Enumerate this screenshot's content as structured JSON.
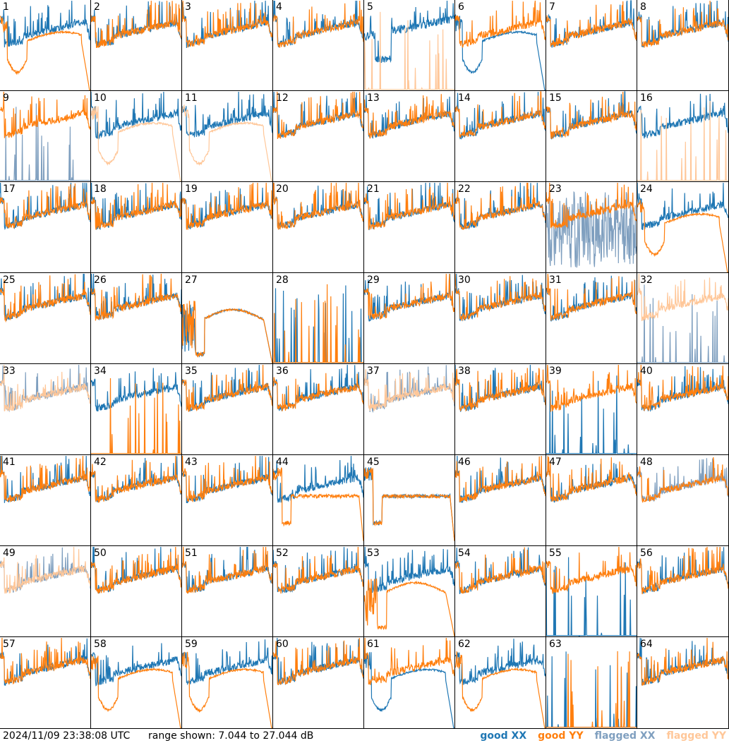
{
  "footer": {
    "timestamp": "2024/11/09 23:38:08 UTC",
    "range_label": "range shown: 7.044 to 27.044 dB"
  },
  "legend": [
    {
      "label": "good XX",
      "color": "#1f77b4"
    },
    {
      "label": "good YY",
      "color": "#ff7f0e"
    },
    {
      "label": "flagged XX",
      "color": "#7f9fbf"
    },
    {
      "label": "flagged YY",
      "color": "#ffc799"
    }
  ],
  "chart_data": {
    "type": "line",
    "grid": "8x8 small multiples",
    "ylim_db": [
      7.044,
      27.044
    ],
    "panels": [
      {
        "id": "1",
        "xx": "good",
        "yy": "good",
        "xx_shape": "noisy",
        "yy_shape": "dip_dropoff"
      },
      {
        "id": "2",
        "xx": "good",
        "yy": "good",
        "xx_shape": "noisy",
        "yy_shape": "noisy"
      },
      {
        "id": "3",
        "xx": "good",
        "yy": "good",
        "xx_shape": "noisy",
        "yy_shape": "noisy"
      },
      {
        "id": "4",
        "xx": "good",
        "yy": "good",
        "xx_shape": "noisy",
        "yy_shape": "noisy"
      },
      {
        "id": "5",
        "xx": "good",
        "yy": "flagged",
        "xx_shape": "noisy_dip",
        "yy_shape": "spikes_low"
      },
      {
        "id": "6",
        "xx": "good",
        "yy": "good",
        "xx_shape": "dip_dropoff",
        "yy_shape": "noisy"
      },
      {
        "id": "7",
        "xx": "good",
        "yy": "good",
        "xx_shape": "noisy",
        "yy_shape": "noisy"
      },
      {
        "id": "8",
        "xx": "good",
        "yy": "good",
        "xx_shape": "noisy",
        "yy_shape": "noisy"
      },
      {
        "id": "9",
        "xx": "flagged",
        "yy": "good",
        "xx_shape": "spikes_low",
        "yy_shape": "noisy"
      },
      {
        "id": "10",
        "xx": "good",
        "yy": "flagged",
        "xx_shape": "noisy",
        "yy_shape": "dip_dropoff"
      },
      {
        "id": "11",
        "xx": "good",
        "yy": "flagged",
        "xx_shape": "noisy",
        "yy_shape": "dip_dropoff"
      },
      {
        "id": "12",
        "xx": "good",
        "yy": "good",
        "xx_shape": "noisy",
        "yy_shape": "noisy"
      },
      {
        "id": "13",
        "xx": "good",
        "yy": "good",
        "xx_shape": "noisy",
        "yy_shape": "noisy"
      },
      {
        "id": "14",
        "xx": "good",
        "yy": "good",
        "xx_shape": "noisy",
        "yy_shape": "noisy"
      },
      {
        "id": "15",
        "xx": "good",
        "yy": "good",
        "xx_shape": "noisy",
        "yy_shape": "noisy"
      },
      {
        "id": "16",
        "xx": "good",
        "yy": "flagged",
        "xx_shape": "noisy",
        "yy_shape": "spikes_low"
      },
      {
        "id": "17",
        "xx": "good",
        "yy": "good",
        "xx_shape": "noisy",
        "yy_shape": "noisy"
      },
      {
        "id": "18",
        "xx": "good",
        "yy": "good",
        "xx_shape": "noisy",
        "yy_shape": "noisy"
      },
      {
        "id": "19",
        "xx": "good",
        "yy": "good",
        "xx_shape": "noisy",
        "yy_shape": "noisy"
      },
      {
        "id": "20",
        "xx": "good",
        "yy": "good",
        "xx_shape": "noisy",
        "yy_shape": "noisy"
      },
      {
        "id": "21",
        "xx": "good",
        "yy": "good",
        "xx_shape": "noisy",
        "yy_shape": "noisy"
      },
      {
        "id": "22",
        "xx": "good",
        "yy": "good",
        "xx_shape": "noisy",
        "yy_shape": "noisy"
      },
      {
        "id": "23",
        "xx": "flagged",
        "yy": "good",
        "xx_shape": "wild",
        "yy_shape": "noisy"
      },
      {
        "id": "24",
        "xx": "good",
        "yy": "good",
        "xx_shape": "noisy",
        "yy_shape": "dip_dropoff"
      },
      {
        "id": "25",
        "xx": "good",
        "yy": "good",
        "xx_shape": "noisy",
        "yy_shape": "noisy"
      },
      {
        "id": "26",
        "xx": "good",
        "yy": "good",
        "xx_shape": "noisy",
        "yy_shape": "noisy"
      },
      {
        "id": "27",
        "xx": "good",
        "yy": "good",
        "xx_shape": "hump",
        "yy_shape": "hump"
      },
      {
        "id": "28",
        "xx": "good",
        "yy": "good",
        "xx_shape": "spikes_low",
        "yy_shape": "spikes_low"
      },
      {
        "id": "29",
        "xx": "good",
        "yy": "good",
        "xx_shape": "noisy",
        "yy_shape": "noisy"
      },
      {
        "id": "30",
        "xx": "good",
        "yy": "good",
        "xx_shape": "noisy",
        "yy_shape": "noisy"
      },
      {
        "id": "31",
        "xx": "good",
        "yy": "good",
        "xx_shape": "noisy",
        "yy_shape": "noisy"
      },
      {
        "id": "32",
        "xx": "flagged",
        "yy": "flagged",
        "xx_shape": "spikes_low",
        "yy_shape": "noisy"
      },
      {
        "id": "33",
        "xx": "flagged",
        "yy": "flagged",
        "xx_shape": "noisy",
        "yy_shape": "noisy"
      },
      {
        "id": "34",
        "xx": "good",
        "yy": "good",
        "xx_shape": "noisy",
        "yy_shape": "spikes_low"
      },
      {
        "id": "35",
        "xx": "good",
        "yy": "good",
        "xx_shape": "noisy",
        "yy_shape": "noisy"
      },
      {
        "id": "36",
        "xx": "good",
        "yy": "good",
        "xx_shape": "noisy",
        "yy_shape": "noisy"
      },
      {
        "id": "37",
        "xx": "flagged",
        "yy": "flagged",
        "xx_shape": "noisy",
        "yy_shape": "noisy"
      },
      {
        "id": "38",
        "xx": "good",
        "yy": "good",
        "xx_shape": "noisy",
        "yy_shape": "noisy"
      },
      {
        "id": "39",
        "xx": "good",
        "yy": "good",
        "xx_shape": "spikes_low",
        "yy_shape": "noisy"
      },
      {
        "id": "40",
        "xx": "good",
        "yy": "good",
        "xx_shape": "noisy",
        "yy_shape": "noisy"
      },
      {
        "id": "41",
        "xx": "good",
        "yy": "good",
        "xx_shape": "noisy",
        "yy_shape": "noisy"
      },
      {
        "id": "42",
        "xx": "good",
        "yy": "good",
        "xx_shape": "noisy",
        "yy_shape": "noisy"
      },
      {
        "id": "43",
        "xx": "good",
        "yy": "good",
        "xx_shape": "noisy",
        "yy_shape": "noisy"
      },
      {
        "id": "44",
        "xx": "good",
        "yy": "good",
        "xx_shape": "noisy",
        "yy_shape": "plateau"
      },
      {
        "id": "45",
        "xx": "good",
        "yy": "good",
        "xx_shape": "plateau",
        "yy_shape": "plateau"
      },
      {
        "id": "46",
        "xx": "good",
        "yy": "good",
        "xx_shape": "noisy",
        "yy_shape": "noisy"
      },
      {
        "id": "47",
        "xx": "good",
        "yy": "good",
        "xx_shape": "noisy",
        "yy_shape": "noisy"
      },
      {
        "id": "48",
        "xx": "flagged",
        "yy": "good",
        "xx_shape": "noisy",
        "yy_shape": "noisy"
      },
      {
        "id": "49",
        "xx": "flagged",
        "yy": "flagged",
        "xx_shape": "noisy",
        "yy_shape": "noisy"
      },
      {
        "id": "50",
        "xx": "good",
        "yy": "good",
        "xx_shape": "noisy",
        "yy_shape": "noisy"
      },
      {
        "id": "51",
        "xx": "good",
        "yy": "good",
        "xx_shape": "noisy",
        "yy_shape": "noisy"
      },
      {
        "id": "52",
        "xx": "good",
        "yy": "good",
        "xx_shape": "noisy",
        "yy_shape": "noisy"
      },
      {
        "id": "53",
        "xx": "good",
        "yy": "good",
        "xx_shape": "noisy",
        "yy_shape": "hump"
      },
      {
        "id": "54",
        "xx": "good",
        "yy": "good",
        "xx_shape": "noisy",
        "yy_shape": "noisy"
      },
      {
        "id": "55",
        "xx": "good",
        "yy": "good",
        "xx_shape": "spikes_low",
        "yy_shape": "noisy"
      },
      {
        "id": "56",
        "xx": "good",
        "yy": "good",
        "xx_shape": "noisy",
        "yy_shape": "noisy"
      },
      {
        "id": "57",
        "xx": "good",
        "yy": "good",
        "xx_shape": "noisy",
        "yy_shape": "noisy"
      },
      {
        "id": "58",
        "xx": "good",
        "yy": "good",
        "xx_shape": "noisy",
        "yy_shape": "dip_dropoff"
      },
      {
        "id": "59",
        "xx": "good",
        "yy": "good",
        "xx_shape": "noisy",
        "yy_shape": "dip_dropoff"
      },
      {
        "id": "60",
        "xx": "good",
        "yy": "good",
        "xx_shape": "noisy",
        "yy_shape": "noisy"
      },
      {
        "id": "61",
        "xx": "good",
        "yy": "good",
        "xx_shape": "dip_dropoff",
        "yy_shape": "noisy"
      },
      {
        "id": "62",
        "xx": "good",
        "yy": "good",
        "xx_shape": "noisy",
        "yy_shape": "dip_dropoff"
      },
      {
        "id": "63",
        "xx": "good",
        "yy": "good",
        "xx_shape": "spikes_low",
        "yy_shape": "spikes_low"
      },
      {
        "id": "64",
        "xx": "good",
        "yy": "good",
        "xx_shape": "noisy",
        "yy_shape": "noisy"
      }
    ]
  }
}
